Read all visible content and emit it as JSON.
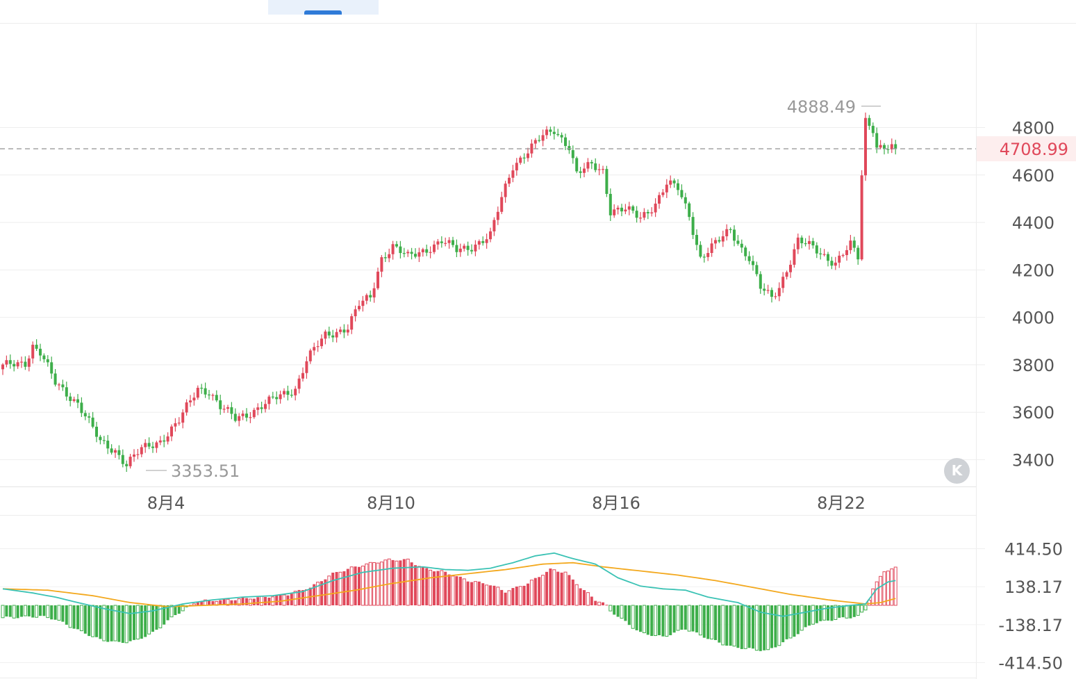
{
  "toolbar": {
    "active_tab_color": "#2f7bd8"
  },
  "main_chart": {
    "current_price_label": "4708.99",
    "high_label": "4888.49",
    "low_label": "3353.51",
    "reset_button_icon": "kline-reset-icon",
    "reset_button_glyph": "K"
  },
  "chart_data": [
    {
      "type": "candlestick",
      "title": "",
      "y_ticks": [
        "4800",
        "4600",
        "4400",
        "4200",
        "4000",
        "3800",
        "3600",
        "3400"
      ],
      "x_ticks": [
        "8月4",
        "8月10",
        "8月16",
        "8月22"
      ],
      "ylim": [
        3290,
        5110
      ],
      "current_price": 4708.99,
      "high": 4888.49,
      "low": 3353.51,
      "grid": true,
      "colors": {
        "up": "#e0485a",
        "down": "#3dae4a",
        "price_line": "#9a9a9a"
      },
      "anchors": [
        [
          0,
          3790
        ],
        [
          6,
          3810
        ],
        [
          8,
          3880
        ],
        [
          10,
          3850
        ],
        [
          14,
          3720
        ],
        [
          20,
          3640
        ],
        [
          26,
          3470
        ],
        [
          30,
          3440
        ],
        [
          33,
          3380
        ],
        [
          37,
          3440
        ],
        [
          42,
          3480
        ],
        [
          47,
          3560
        ],
        [
          52,
          3700
        ],
        [
          55,
          3690
        ],
        [
          58,
          3620
        ],
        [
          62,
          3570
        ],
        [
          66,
          3600
        ],
        [
          72,
          3650
        ],
        [
          78,
          3700
        ],
        [
          81,
          3820
        ],
        [
          86,
          3920
        ],
        [
          92,
          3960
        ],
        [
          95,
          4050
        ],
        [
          98,
          4080
        ],
        [
          101,
          4250
        ],
        [
          104,
          4300
        ],
        [
          108,
          4250
        ],
        [
          112,
          4280
        ],
        [
          117,
          4320
        ],
        [
          121,
          4280
        ],
        [
          125,
          4300
        ],
        [
          130,
          4340
        ],
        [
          133,
          4500
        ],
        [
          136,
          4640
        ],
        [
          140,
          4700
        ],
        [
          144,
          4760
        ],
        [
          147,
          4790
        ],
        [
          151,
          4720
        ],
        [
          153,
          4600
        ],
        [
          157,
          4640
        ],
        [
          160,
          4620
        ],
        [
          162,
          4450
        ],
        [
          166,
          4450
        ],
        [
          170,
          4420
        ],
        [
          174,
          4480
        ],
        [
          177,
          4560
        ],
        [
          180,
          4540
        ],
        [
          183,
          4430
        ],
        [
          186,
          4250
        ],
        [
          191,
          4320
        ],
        [
          194,
          4370
        ],
        [
          197,
          4290
        ],
        [
          199,
          4250
        ],
        [
          202,
          4120
        ],
        [
          205,
          4080
        ],
        [
          207,
          4130
        ],
        [
          210,
          4240
        ],
        [
          212,
          4320
        ],
        [
          216,
          4290
        ],
        [
          219,
          4260
        ],
        [
          222,
          4230
        ],
        [
          226,
          4300
        ],
        [
          228,
          4250
        ],
        [
          229,
          4600
        ],
        [
          230,
          4830
        ],
        [
          232,
          4800
        ],
        [
          233,
          4720
        ],
        [
          235,
          4715
        ],
        [
          237,
          4708.99
        ]
      ]
    },
    {
      "type": "macd",
      "title": "",
      "y_ticks": [
        "414.50",
        "138.17",
        "-138.17",
        "-414.50"
      ],
      "ylim": [
        -414.5,
        414.5
      ],
      "colors": {
        "dif": "#3ac2b4",
        "dea": "#f3a81d",
        "hist_up": "#e0485a",
        "hist_down": "#3dae4a"
      },
      "dif_anchors": [
        [
          0,
          120
        ],
        [
          8,
          90
        ],
        [
          14,
          60
        ],
        [
          20,
          20
        ],
        [
          28,
          -30
        ],
        [
          34,
          -60
        ],
        [
          40,
          -40
        ],
        [
          48,
          10
        ],
        [
          56,
          40
        ],
        [
          64,
          60
        ],
        [
          72,
          70
        ],
        [
          80,
          100
        ],
        [
          88,
          180
        ],
        [
          96,
          240
        ],
        [
          104,
          270
        ],
        [
          112,
          280
        ],
        [
          118,
          260
        ],
        [
          124,
          255
        ],
        [
          130,
          270
        ],
        [
          136,
          310
        ],
        [
          142,
          360
        ],
        [
          147,
          380
        ],
        [
          152,
          340
        ],
        [
          158,
          300
        ],
        [
          164,
          200
        ],
        [
          170,
          140
        ],
        [
          176,
          120
        ],
        [
          182,
          110
        ],
        [
          188,
          60
        ],
        [
          196,
          20
        ],
        [
          202,
          -50
        ],
        [
          208,
          -80
        ],
        [
          214,
          -50
        ],
        [
          220,
          -20
        ],
        [
          226,
          0
        ],
        [
          230,
          10
        ],
        [
          233,
          120
        ],
        [
          236,
          170
        ],
        [
          238,
          180
        ]
      ],
      "dea_anchors": [
        [
          0,
          120
        ],
        [
          12,
          110
        ],
        [
          24,
          70
        ],
        [
          34,
          20
        ],
        [
          44,
          -10
        ],
        [
          54,
          0
        ],
        [
          64,
          10
        ],
        [
          74,
          30
        ],
        [
          84,
          70
        ],
        [
          94,
          110
        ],
        [
          104,
          160
        ],
        [
          114,
          200
        ],
        [
          124,
          230
        ],
        [
          134,
          260
        ],
        [
          144,
          300
        ],
        [
          152,
          310
        ],
        [
          160,
          280
        ],
        [
          170,
          250
        ],
        [
          180,
          220
        ],
        [
          190,
          180
        ],
        [
          200,
          130
        ],
        [
          210,
          80
        ],
        [
          220,
          40
        ],
        [
          230,
          10
        ],
        [
          234,
          20
        ],
        [
          238,
          50
        ]
      ],
      "hist_anchors": [
        [
          0,
          -90
        ],
        [
          10,
          -80
        ],
        [
          14,
          -100
        ],
        [
          20,
          -180
        ],
        [
          26,
          -250
        ],
        [
          31,
          -270
        ],
        [
          35,
          -260
        ],
        [
          40,
          -200
        ],
        [
          46,
          -70
        ],
        [
          52,
          30
        ],
        [
          60,
          40
        ],
        [
          70,
          60
        ],
        [
          76,
          80
        ],
        [
          82,
          130
        ],
        [
          88,
          230
        ],
        [
          94,
          280
        ],
        [
          99,
          310
        ],
        [
          103,
          330
        ],
        [
          108,
          330
        ],
        [
          112,
          270
        ],
        [
          118,
          240
        ],
        [
          124,
          180
        ],
        [
          130,
          150
        ],
        [
          134,
          100
        ],
        [
          140,
          160
        ],
        [
          146,
          260
        ],
        [
          150,
          240
        ],
        [
          154,
          130
        ],
        [
          158,
          40
        ],
        [
          161,
          5
        ],
        [
          162,
          -40
        ],
        [
          170,
          -200
        ],
        [
          176,
          -230
        ],
        [
          182,
          -170
        ],
        [
          188,
          -240
        ],
        [
          194,
          -300
        ],
        [
          200,
          -320
        ],
        [
          204,
          -330
        ],
        [
          210,
          -240
        ],
        [
          216,
          -130
        ],
        [
          222,
          -100
        ],
        [
          228,
          -80
        ],
        [
          230,
          -30
        ],
        [
          232,
          120
        ],
        [
          235,
          250
        ],
        [
          238,
          270
        ]
      ]
    }
  ]
}
